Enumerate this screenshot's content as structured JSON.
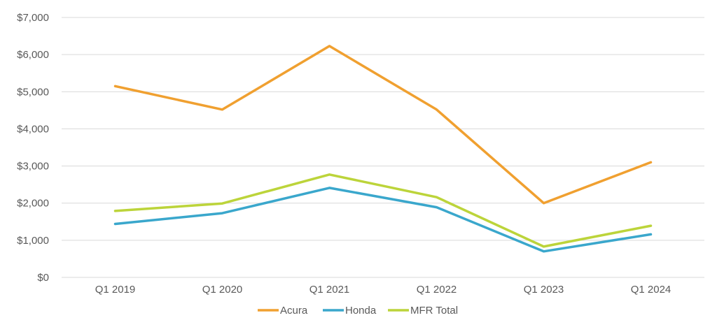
{
  "chart_data": {
    "type": "line",
    "title": "",
    "xlabel": "",
    "ylabel": "",
    "categories": [
      "Q1 2019",
      "Q1 2020",
      "Q1 2021",
      "Q1 2022",
      "Q1 2023",
      "Q1 2024"
    ],
    "ylim": [
      0,
      7000
    ],
    "y_ticks": [
      0,
      1000,
      2000,
      3000,
      4000,
      5000,
      6000,
      7000
    ],
    "y_tick_labels": [
      "$0",
      "$1,000",
      "$2,000",
      "$3,000",
      "$4,000",
      "$5,000",
      "$6,000",
      "$7,000"
    ],
    "grid": true,
    "legend_position": "bottom",
    "series": [
      {
        "name": "Acura",
        "color": "#F0A030",
        "values": [
          5150,
          4520,
          6230,
          4520,
          2000,
          3100
        ]
      },
      {
        "name": "Honda",
        "color": "#3AA7CC",
        "values": [
          1440,
          1730,
          2410,
          1890,
          700,
          1160
        ]
      },
      {
        "name": "MFR Total",
        "color": "#BCD43A",
        "values": [
          1790,
          1990,
          2770,
          2160,
          830,
          1390
        ]
      }
    ]
  }
}
